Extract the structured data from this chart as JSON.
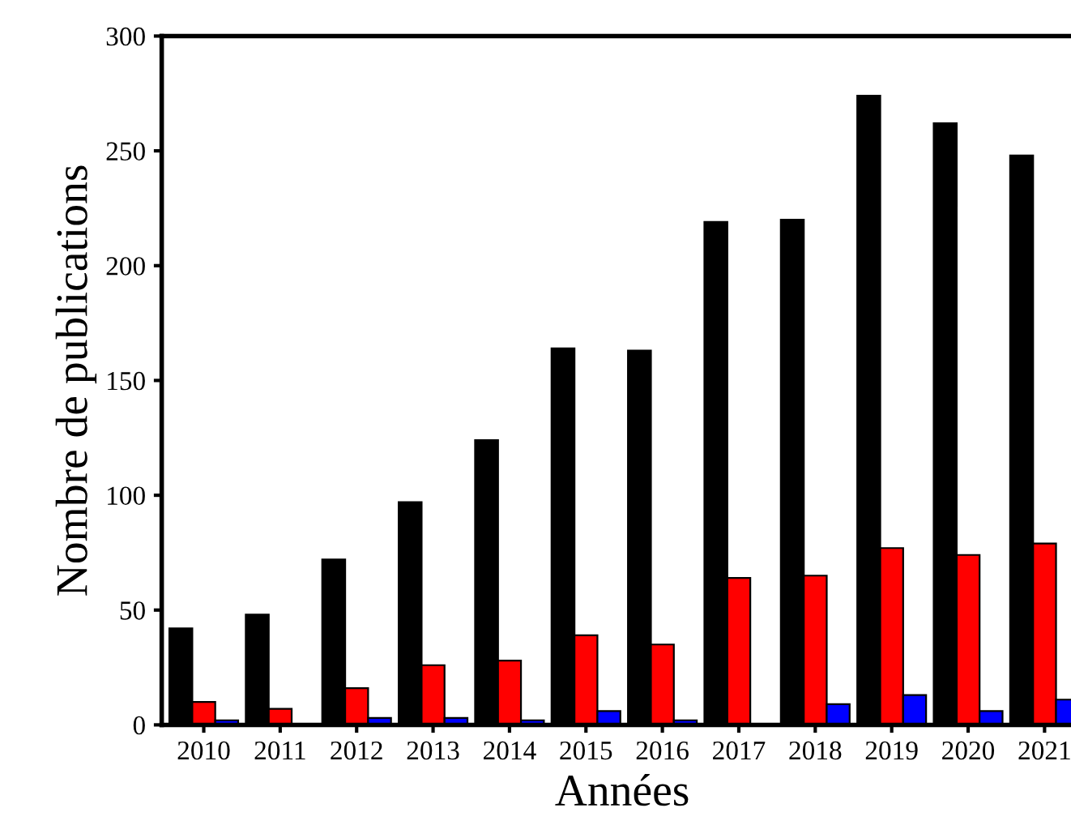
{
  "chart_data": {
    "type": "bar",
    "xlabel": "Années",
    "ylabel": "Nombre de publications",
    "categories": [
      "2010",
      "2011",
      "2012",
      "2013",
      "2014",
      "2015",
      "2016",
      "2017",
      "2018",
      "2019",
      "2020",
      "2021"
    ],
    "series": [
      {
        "color": "#000000",
        "values": [
          42,
          48,
          72,
          97,
          124,
          164,
          163,
          219,
          220,
          274,
          262,
          248
        ]
      },
      {
        "color": "#ff0000",
        "values": [
          10,
          7,
          16,
          26,
          28,
          39,
          35,
          64,
          65,
          77,
          74,
          79
        ]
      },
      {
        "color": "#0000ff",
        "values": [
          2,
          0,
          3,
          3,
          2,
          6,
          2,
          0,
          9,
          13,
          6,
          11
        ]
      }
    ],
    "ylim": [
      0,
      300
    ],
    "yticks": [
      0,
      50,
      100,
      150,
      200,
      250,
      300
    ],
    "grid": false,
    "legend": false
  }
}
